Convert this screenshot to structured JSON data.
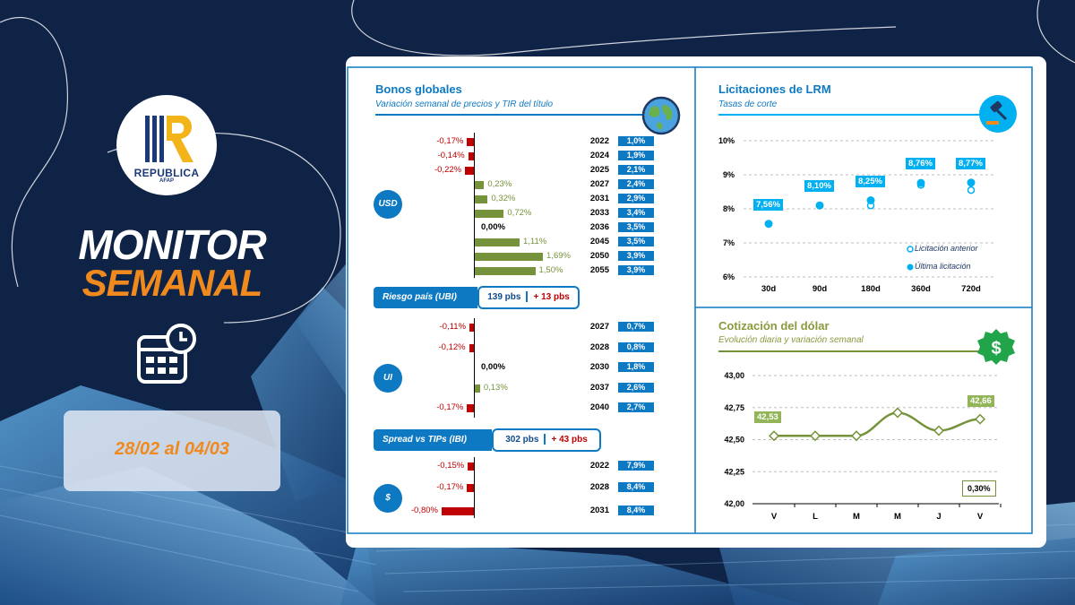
{
  "brand": {
    "logo_text": "REPUBLICA",
    "logo_sub": "AFAP"
  },
  "headline": {
    "line1": "MONITOR",
    "line2": "SEMANAL"
  },
  "calendar_icon": "calendar-clock-icon",
  "date_range": "28/02 al 04/03",
  "colors": {
    "navy": "#0f2347",
    "orange": "#f08a1e",
    "blue": "#0e79c3",
    "red": "#c00000",
    "green": "#76933c",
    "cyan": "#00b0f0"
  },
  "bonos": {
    "title": "Bonos globales",
    "subtitle": "Variación semanal de precios y TIR del título",
    "icon": "globe-icon",
    "usd": {
      "label": "USD",
      "rows": [
        {
          "var_label": "-0,17%",
          "var": -0.17,
          "year": "2022",
          "tir": "1,0%"
        },
        {
          "var_label": "-0,14%",
          "var": -0.14,
          "year": "2024",
          "tir": "1,9%"
        },
        {
          "var_label": "-0,22%",
          "var": -0.22,
          "year": "2025",
          "tir": "2,1%"
        },
        {
          "var_label": "0,23%",
          "var": 0.23,
          "year": "2027",
          "tir": "2,4%"
        },
        {
          "var_label": "0,32%",
          "var": 0.32,
          "year": "2031",
          "tir": "2,9%"
        },
        {
          "var_label": "0,72%",
          "var": 0.72,
          "year": "2033",
          "tir": "3,4%"
        },
        {
          "var_label": "0,00%",
          "var": 0.0,
          "year": "2036",
          "tir": "3,5%"
        },
        {
          "var_label": "1,11%",
          "var": 1.11,
          "year": "2045",
          "tir": "3,5%"
        },
        {
          "var_label": "1,69%",
          "var": 1.69,
          "year": "2050",
          "tir": "3,9%"
        },
        {
          "var_label": "1,50%",
          "var": 1.5,
          "year": "2055",
          "tir": "3,9%"
        }
      ]
    },
    "riesgo": {
      "label": "Riesgo país (UBI)",
      "value": "139 pbs",
      "change": "+ 13 pbs"
    },
    "ui": {
      "label": "UI",
      "rows": [
        {
          "var_label": "-0,11%",
          "var": -0.11,
          "year": "2027",
          "tir": "0,7%"
        },
        {
          "var_label": "-0,12%",
          "var": -0.12,
          "year": "2028",
          "tir": "0,8%"
        },
        {
          "var_label": "0,00%",
          "var": 0.0,
          "year": "2030",
          "tir": "1,8%"
        },
        {
          "var_label": "0,13%",
          "var": 0.13,
          "year": "2037",
          "tir": "2,6%"
        },
        {
          "var_label": "-0,17%",
          "var": -0.17,
          "year": "2040",
          "tir": "2,7%"
        }
      ]
    },
    "spread": {
      "label": "Spread vs TIPs (IBI)",
      "value": "302 pbs",
      "change": "+ 43 pbs"
    },
    "pesos": {
      "label": "$",
      "rows": [
        {
          "var_label": "-0,15%",
          "var": -0.15,
          "year": "2022",
          "tir": "7,9%"
        },
        {
          "var_label": "-0,17%",
          "var": -0.17,
          "year": "2028",
          "tir": "8,4%"
        },
        {
          "var_label": "-0,80%",
          "var": -0.8,
          "year": "2031",
          "tir": "8,4%"
        }
      ]
    }
  },
  "lrm": {
    "title": "Licitaciones de LRM",
    "subtitle": "Tasas de corte",
    "icon": "gavel-icon",
    "legend": {
      "prev": "Licitación anterior",
      "last": "Última licitación"
    }
  },
  "dolar": {
    "title": "Cotización del dólar",
    "subtitle": "Evolución diaria y variación semanal",
    "icon": "dollar-badge-icon",
    "variation": "0,30%"
  },
  "chart_data": [
    {
      "type": "scatter",
      "title": "Licitaciones de LRM",
      "subtitle": "Tasas de corte",
      "categories": [
        "30d",
        "90d",
        "180d",
        "360d",
        "720d"
      ],
      "series": [
        {
          "name": "Licitación anterior",
          "values": [
            null,
            null,
            8.1,
            8.7,
            8.55
          ]
        },
        {
          "name": "Última licitación",
          "values": [
            7.56,
            8.1,
            8.25,
            8.76,
            8.77
          ]
        }
      ],
      "data_labels": [
        "7,56%",
        "8,10%",
        "8,25%",
        "8,76%",
        "8,77%"
      ],
      "yticks": [
        "6%",
        "7%",
        "8%",
        "9%",
        "10%"
      ],
      "ylim": [
        6,
        10
      ],
      "grid": true,
      "legend": "bottom-right"
    },
    {
      "type": "line",
      "title": "Cotización del dólar",
      "subtitle": "Evolución diaria y variación semanal",
      "categories": [
        "V",
        "L",
        "M",
        "M",
        "J",
        "V"
      ],
      "series": [
        {
          "values": [
            42.53,
            42.53,
            42.53,
            42.71,
            42.57,
            42.66
          ]
        }
      ],
      "first_label": "42,53",
      "last_label": "42,66",
      "yticks": [
        "42,00",
        "42,25",
        "42,50",
        "42,75",
        "43,00"
      ],
      "ylim": [
        42.0,
        43.0
      ],
      "grid": true
    }
  ]
}
